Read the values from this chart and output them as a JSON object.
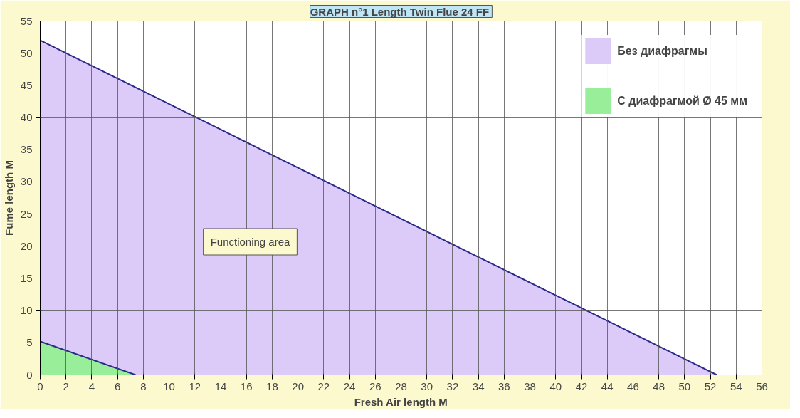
{
  "chart_data": {
    "type": "area",
    "title": "GRAPH n°1 Length Twin Flue  24 FF",
    "xlabel": "Fresh Air length M",
    "ylabel": "Fume length M",
    "series": [
      {
        "name": "Без диафрагмы",
        "color": "#dccaf8",
        "x": [
          0,
          52.5
        ],
        "values": [
          52,
          0
        ]
      },
      {
        "name": "С диафрагмой Ø 45 мм",
        "color": "#99ee99",
        "x": [
          0,
          7.4
        ],
        "values": [
          5.2,
          0
        ]
      }
    ],
    "xlim": [
      0,
      56
    ],
    "xticks": [
      0,
      2,
      4,
      6,
      8,
      10,
      12,
      14,
      16,
      18,
      20,
      22,
      24,
      26,
      28,
      30,
      32,
      34,
      36,
      38,
      40,
      42,
      44,
      46,
      48,
      50,
      52,
      54,
      56
    ],
    "ylim": [
      0,
      55
    ],
    "yticks": [
      0,
      5,
      10,
      15,
      20,
      25,
      30,
      35,
      40,
      45,
      50,
      55
    ],
    "grid": true,
    "legend": "top right",
    "annotations": [
      "Functioning area"
    ]
  }
}
